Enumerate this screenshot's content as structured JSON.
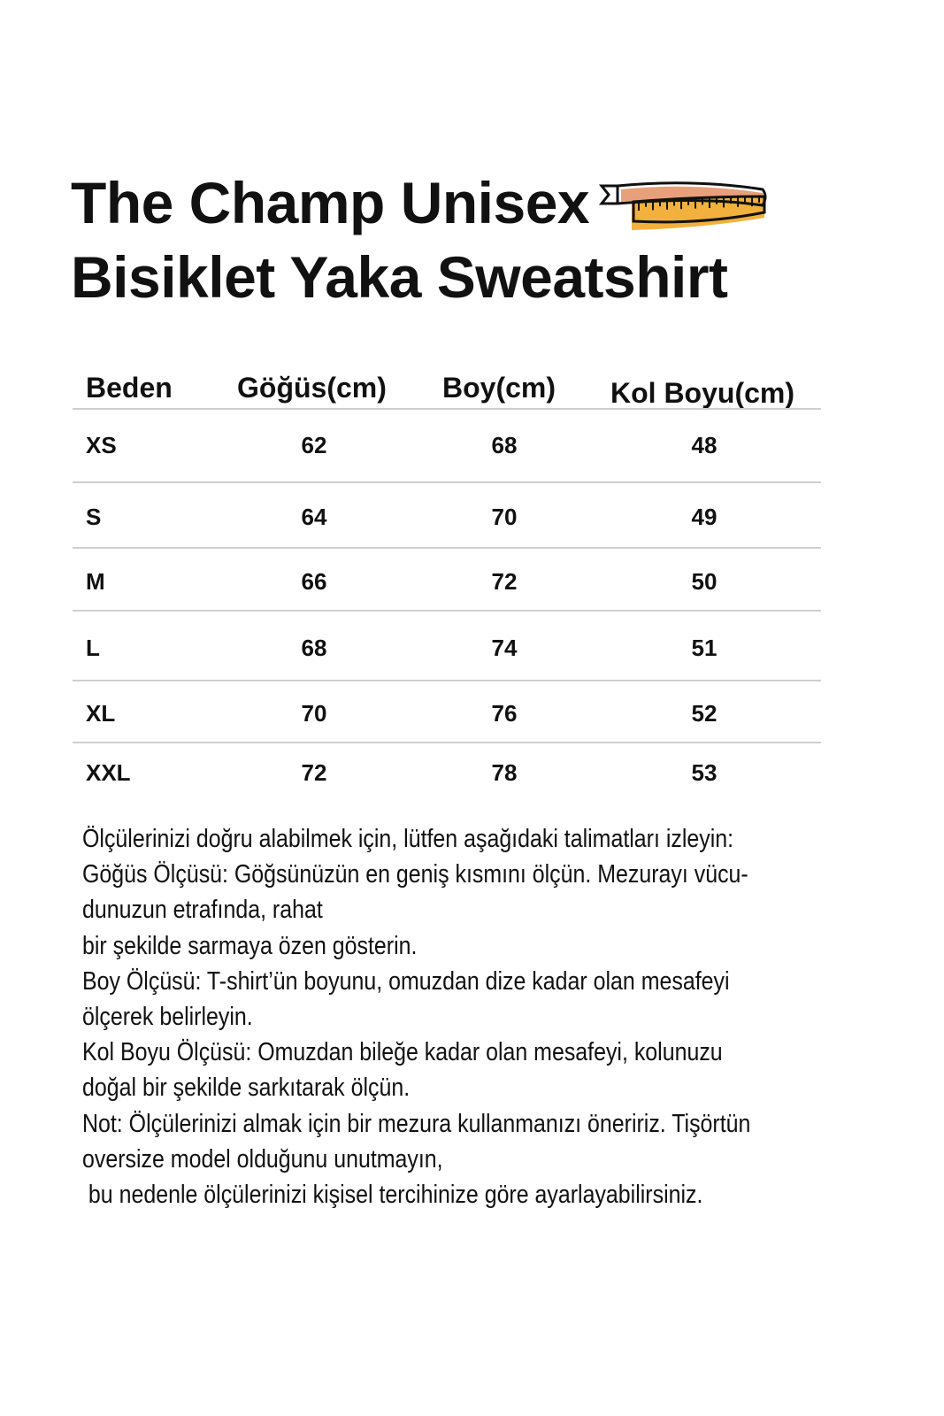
{
  "title": {
    "line1": "The Champ Unisex",
    "line2": "Bisiklet Yaka Sweatshirt",
    "icon": "tape-measure-icon"
  },
  "colors": {
    "tape_orange": "#e8a07a",
    "tape_yellow": "#f2b13c"
  },
  "table": {
    "headers": [
      "Beden",
      "Göğüs(cm)",
      "Boy(cm)",
      "Kol Boyu(cm)"
    ],
    "rows": [
      [
        "XS",
        "62",
        "68",
        "48"
      ],
      [
        "S",
        "64",
        "70",
        "49"
      ],
      [
        "M",
        "66",
        "72",
        "50"
      ],
      [
        "L",
        "68",
        "74",
        "51"
      ],
      [
        "XL",
        "70",
        "76",
        "52"
      ],
      [
        "XXL",
        "72",
        "78",
        "53"
      ]
    ]
  },
  "notes": [
    "Ölçülerinizi doğru alabilmek için, lütfen aşağıdaki talimatları izleyin:",
    "Göğüs Ölçüsü: Göğsünüzün en geniş kısmını ölçün. Mezurayı vücu-",
    "dunuzun etrafında, rahat",
    "bir şekilde sarmaya özen gösterin.",
    "Boy Ölçüsü: T-shirt’ün boyunu, omuzdan dize kadar olan mesafeyi",
    "ölçerek belirleyin.",
    "Kol Boyu Ölçüsü: Omuzdan bileğe kadar olan mesafeyi, kolunuzu",
    "doğal bir şekilde sarkıtarak ölçün.",
    "Not: Ölçülerinizi almak için bir mezura kullanmanızı öneririz. Tişörtün",
    "oversize model olduğunu unutmayın,",
    " bu nedenle ölçülerinizi kişisel tercihinize göre ayarlayabilirsiniz."
  ]
}
